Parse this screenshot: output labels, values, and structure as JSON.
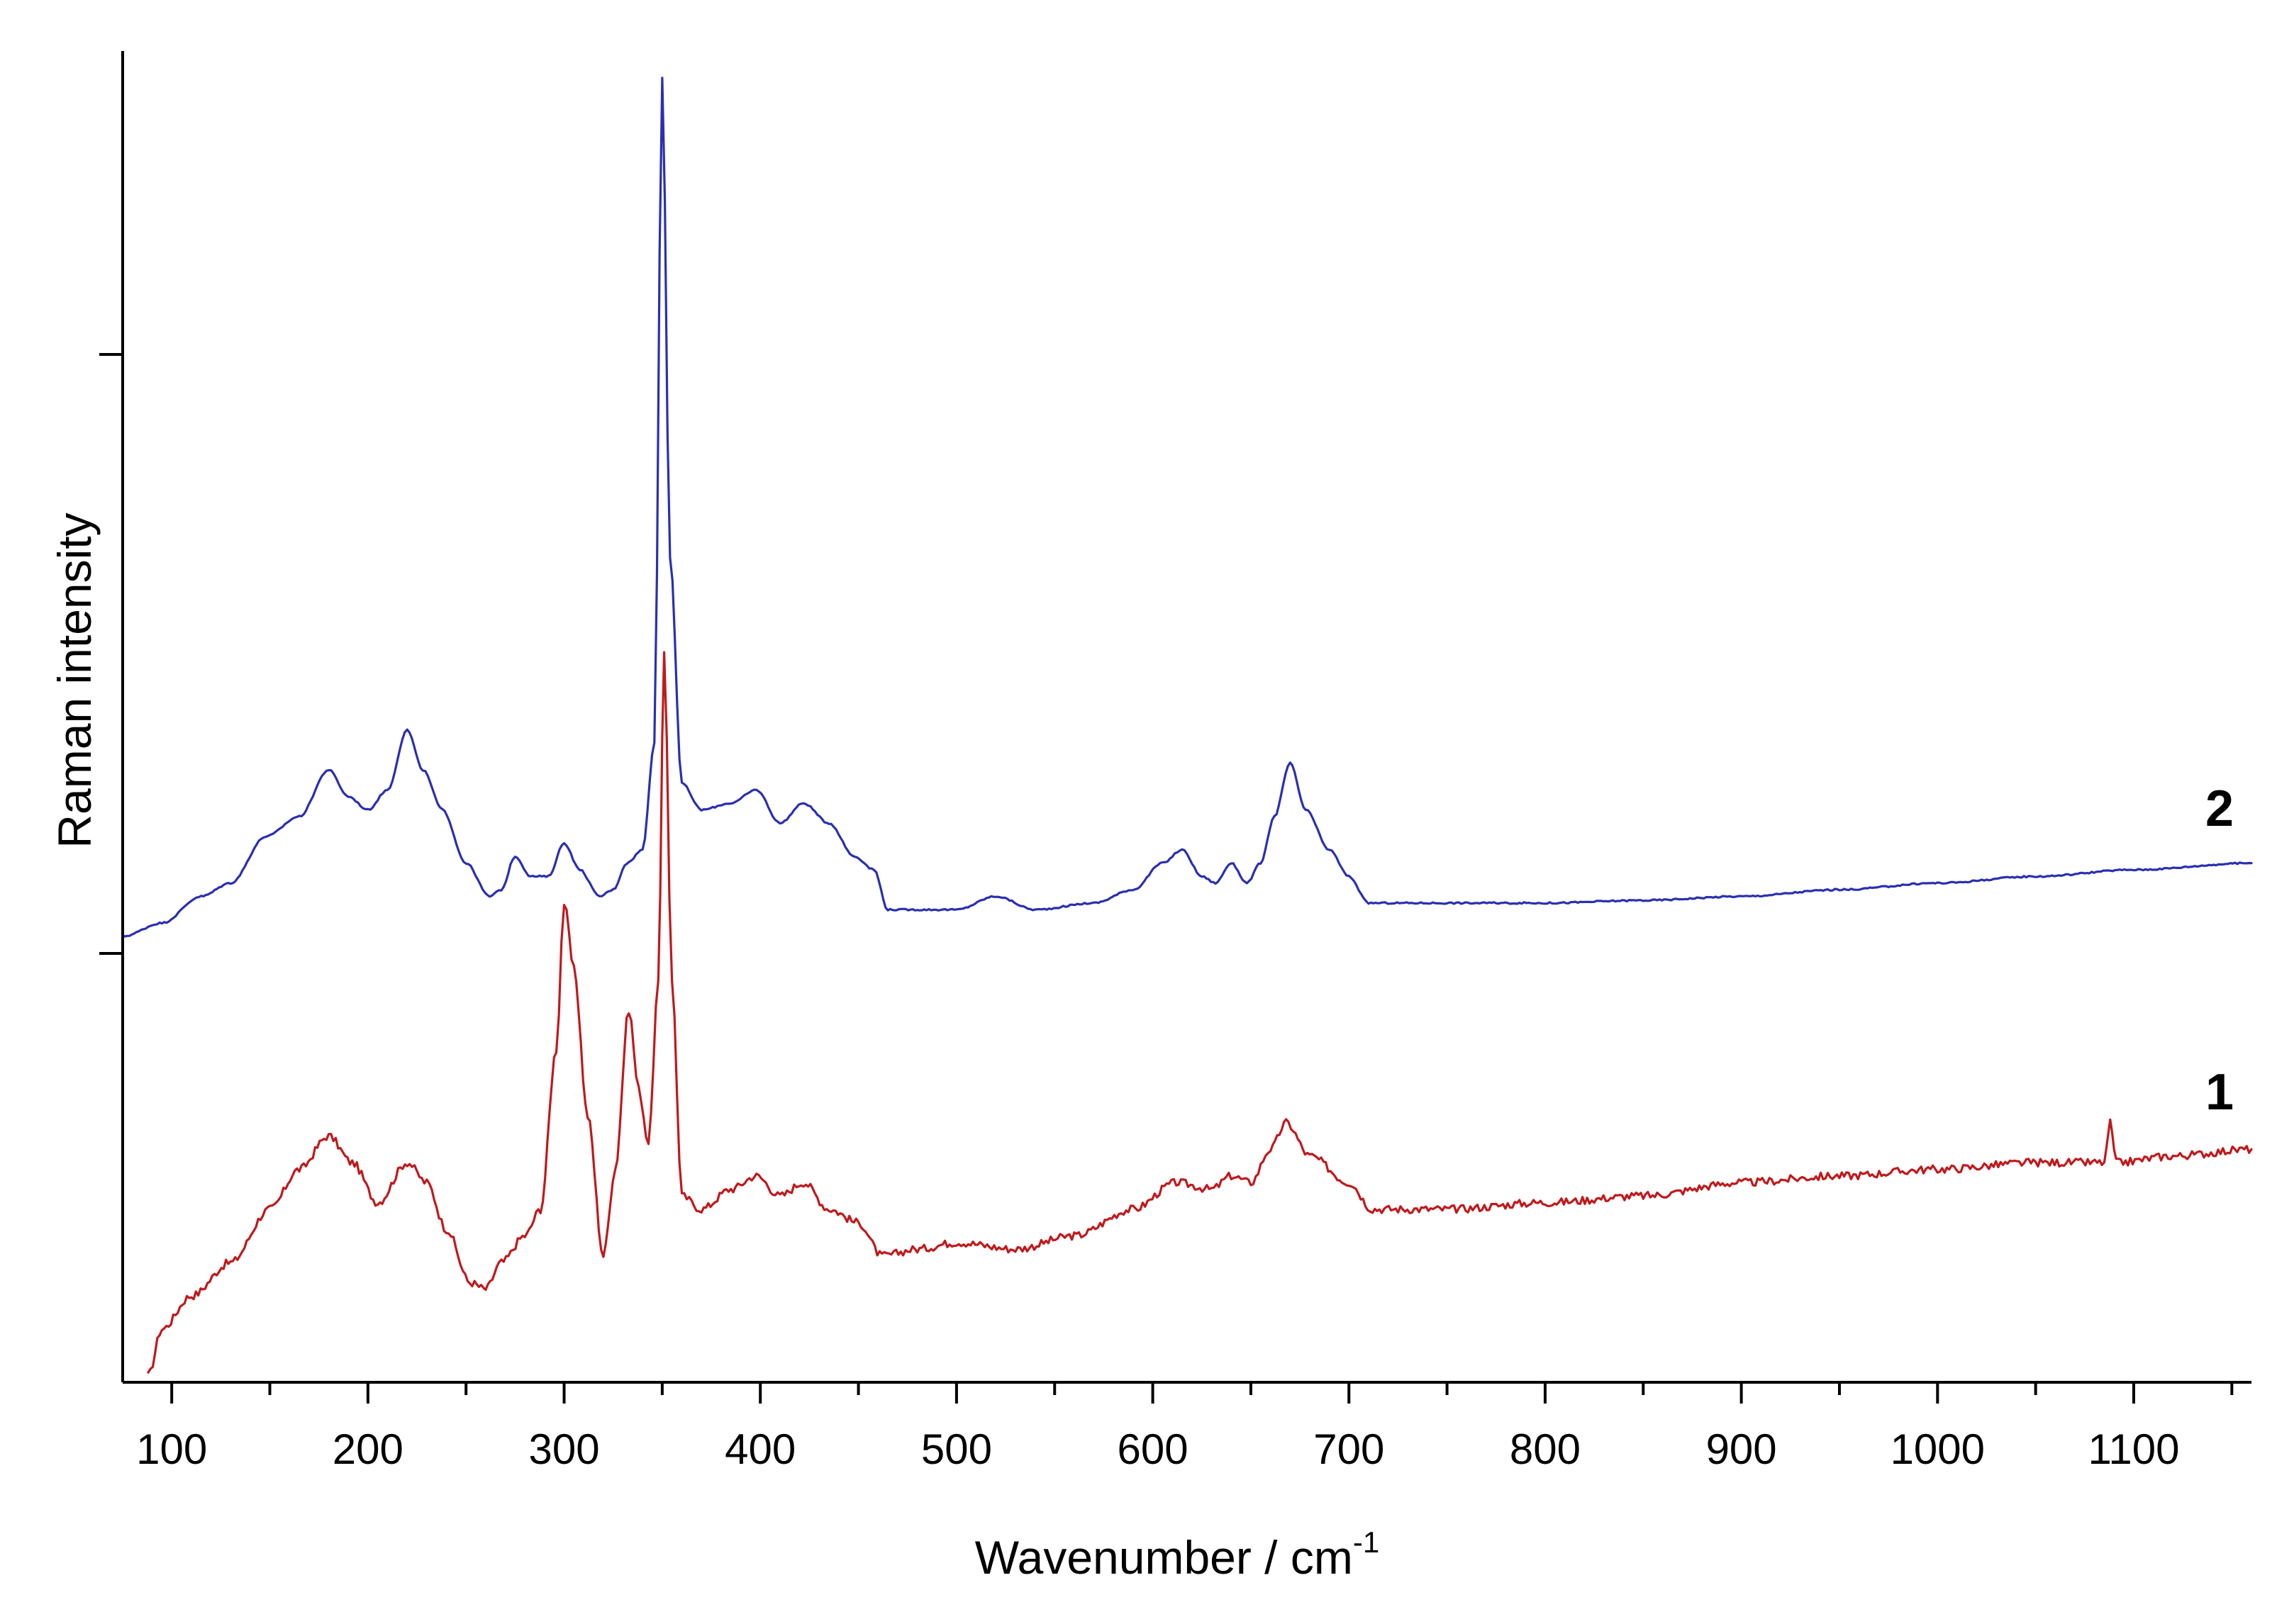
{
  "chart_data": {
    "type": "line",
    "xlabel": "Wavenumber / cm",
    "xlabel_superscript": "-1",
    "ylabel": "Raman intensity",
    "xlim": [
      75,
      1160
    ],
    "ylim": [
      0,
      1
    ],
    "grid": false,
    "legend": "none",
    "x_ticks": [
      "100",
      "200",
      "300",
      "400",
      "500",
      "600",
      "700",
      "800",
      "900",
      "1000",
      "1100"
    ],
    "series": [
      {
        "name": "1",
        "color": "#c0191c",
        "points": [
          [
            88,
            0.005
          ],
          [
            95,
            0.04
          ],
          [
            110,
            0.065
          ],
          [
            130,
            0.09
          ],
          [
            150,
            0.13
          ],
          [
            165,
            0.16
          ],
          [
            180,
            0.185
          ],
          [
            192,
            0.165
          ],
          [
            205,
            0.135
          ],
          [
            220,
            0.165
          ],
          [
            230,
            0.15
          ],
          [
            240,
            0.115
          ],
          [
            252,
            0.075
          ],
          [
            260,
            0.07
          ],
          [
            268,
            0.09
          ],
          [
            280,
            0.11
          ],
          [
            288,
            0.13
          ],
          [
            296,
            0.25
          ],
          [
            300,
            0.36
          ],
          [
            305,
            0.31
          ],
          [
            312,
            0.2
          ],
          [
            320,
            0.095
          ],
          [
            326,
            0.16
          ],
          [
            333,
            0.28
          ],
          [
            338,
            0.22
          ],
          [
            343,
            0.18
          ],
          [
            348,
            0.3
          ],
          [
            351,
            0.55
          ],
          [
            355,
            0.3
          ],
          [
            360,
            0.14
          ],
          [
            370,
            0.13
          ],
          [
            385,
            0.145
          ],
          [
            398,
            0.155
          ],
          [
            410,
            0.14
          ],
          [
            422,
            0.15
          ],
          [
            435,
            0.13
          ],
          [
            450,
            0.12
          ],
          [
            462,
            0.095
          ],
          [
            480,
            0.1
          ],
          [
            500,
            0.105
          ],
          [
            530,
            0.1
          ],
          [
            560,
            0.11
          ],
          [
            590,
            0.13
          ],
          [
            612,
            0.15
          ],
          [
            630,
            0.145
          ],
          [
            640,
            0.155
          ],
          [
            650,
            0.15
          ],
          [
            660,
            0.175
          ],
          [
            668,
            0.195
          ],
          [
            680,
            0.17
          ],
          [
            700,
            0.15
          ],
          [
            712,
            0.13
          ],
          [
            750,
            0.13
          ],
          [
            800,
            0.135
          ],
          [
            850,
            0.14
          ],
          [
            900,
            0.15
          ],
          [
            950,
            0.155
          ],
          [
            1000,
            0.16
          ],
          [
            1050,
            0.165
          ],
          [
            1085,
            0.165
          ],
          [
            1088,
            0.195
          ],
          [
            1091,
            0.165
          ],
          [
            1120,
            0.17
          ],
          [
            1160,
            0.175
          ]
        ]
      },
      {
        "name": "2",
        "color": "#2b2fb0",
        "points": [
          [
            75,
            0.335
          ],
          [
            95,
            0.345
          ],
          [
            115,
            0.365
          ],
          [
            130,
            0.375
          ],
          [
            148,
            0.41
          ],
          [
            165,
            0.425
          ],
          [
            180,
            0.46
          ],
          [
            190,
            0.44
          ],
          [
            200,
            0.43
          ],
          [
            210,
            0.445
          ],
          [
            220,
            0.49
          ],
          [
            228,
            0.46
          ],
          [
            238,
            0.43
          ],
          [
            250,
            0.39
          ],
          [
            262,
            0.365
          ],
          [
            268,
            0.37
          ],
          [
            275,
            0.395
          ],
          [
            283,
            0.38
          ],
          [
            292,
            0.38
          ],
          [
            300,
            0.405
          ],
          [
            308,
            0.385
          ],
          [
            318,
            0.365
          ],
          [
            325,
            0.37
          ],
          [
            332,
            0.39
          ],
          [
            340,
            0.4
          ],
          [
            346,
            0.48
          ],
          [
            350,
            0.98
          ],
          [
            354,
            0.62
          ],
          [
            360,
            0.45
          ],
          [
            370,
            0.43
          ],
          [
            385,
            0.435
          ],
          [
            398,
            0.445
          ],
          [
            410,
            0.42
          ],
          [
            422,
            0.435
          ],
          [
            435,
            0.42
          ],
          [
            448,
            0.395
          ],
          [
            458,
            0.385
          ],
          [
            465,
            0.355
          ],
          [
            480,
            0.355
          ],
          [
            500,
            0.355
          ],
          [
            520,
            0.365
          ],
          [
            540,
            0.355
          ],
          [
            570,
            0.36
          ],
          [
            590,
            0.37
          ],
          [
            605,
            0.39
          ],
          [
            615,
            0.4
          ],
          [
            625,
            0.38
          ],
          [
            632,
            0.375
          ],
          [
            640,
            0.39
          ],
          [
            648,
            0.375
          ],
          [
            655,
            0.39
          ],
          [
            662,
            0.425
          ],
          [
            670,
            0.465
          ],
          [
            678,
            0.43
          ],
          [
            690,
            0.4
          ],
          [
            700,
            0.38
          ],
          [
            710,
            0.36
          ],
          [
            750,
            0.36
          ],
          [
            800,
            0.36
          ],
          [
            850,
            0.362
          ],
          [
            900,
            0.365
          ],
          [
            950,
            0.37
          ],
          [
            1000,
            0.375
          ],
          [
            1050,
            0.38
          ],
          [
            1100,
            0.385
          ],
          [
            1160,
            0.39
          ]
        ]
      }
    ]
  }
}
